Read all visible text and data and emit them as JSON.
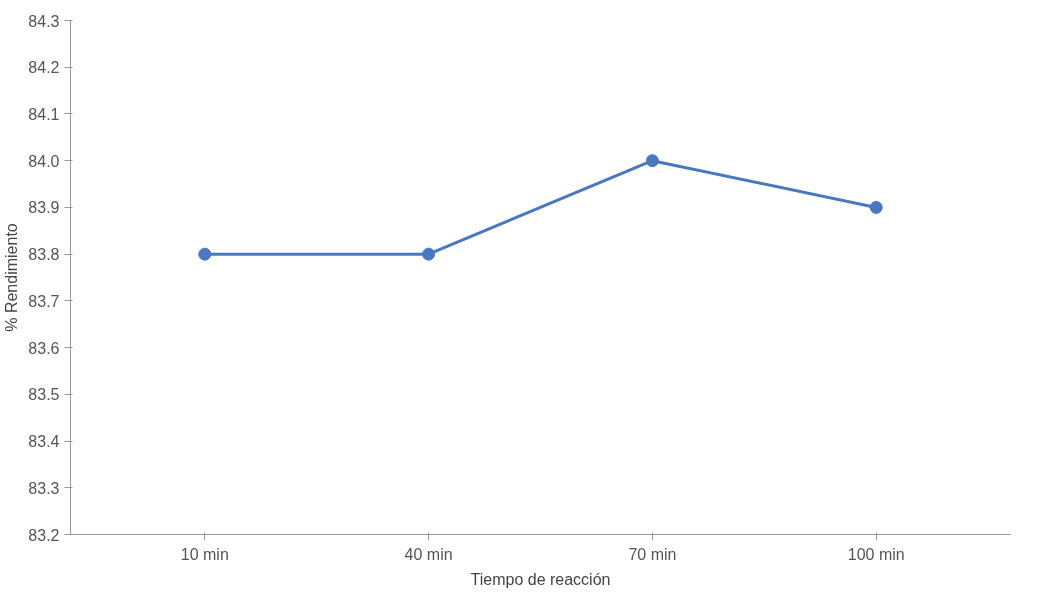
{
  "chart_data": {
    "type": "line",
    "xlabel": "Tiempo de reacción",
    "ylabel": "% Rendimiento",
    "categories": [
      "10 min",
      "40 min",
      "70 min",
      "100 min"
    ],
    "series": [
      {
        "color": "#4a78c0",
        "values": [
          83.8,
          83.8,
          84.0,
          83.9
        ]
      }
    ],
    "ylim": [
      83.2,
      84.3
    ],
    "yticks": [
      83.2,
      83.3,
      83.4,
      83.5,
      83.6,
      83.7,
      83.8,
      83.9,
      {
        "value": 84.0,
        "label": "84.0"
      },
      84.1,
      84.2,
      84.3
    ],
    "grid": false,
    "marker": "circle",
    "line_style": "solid"
  }
}
